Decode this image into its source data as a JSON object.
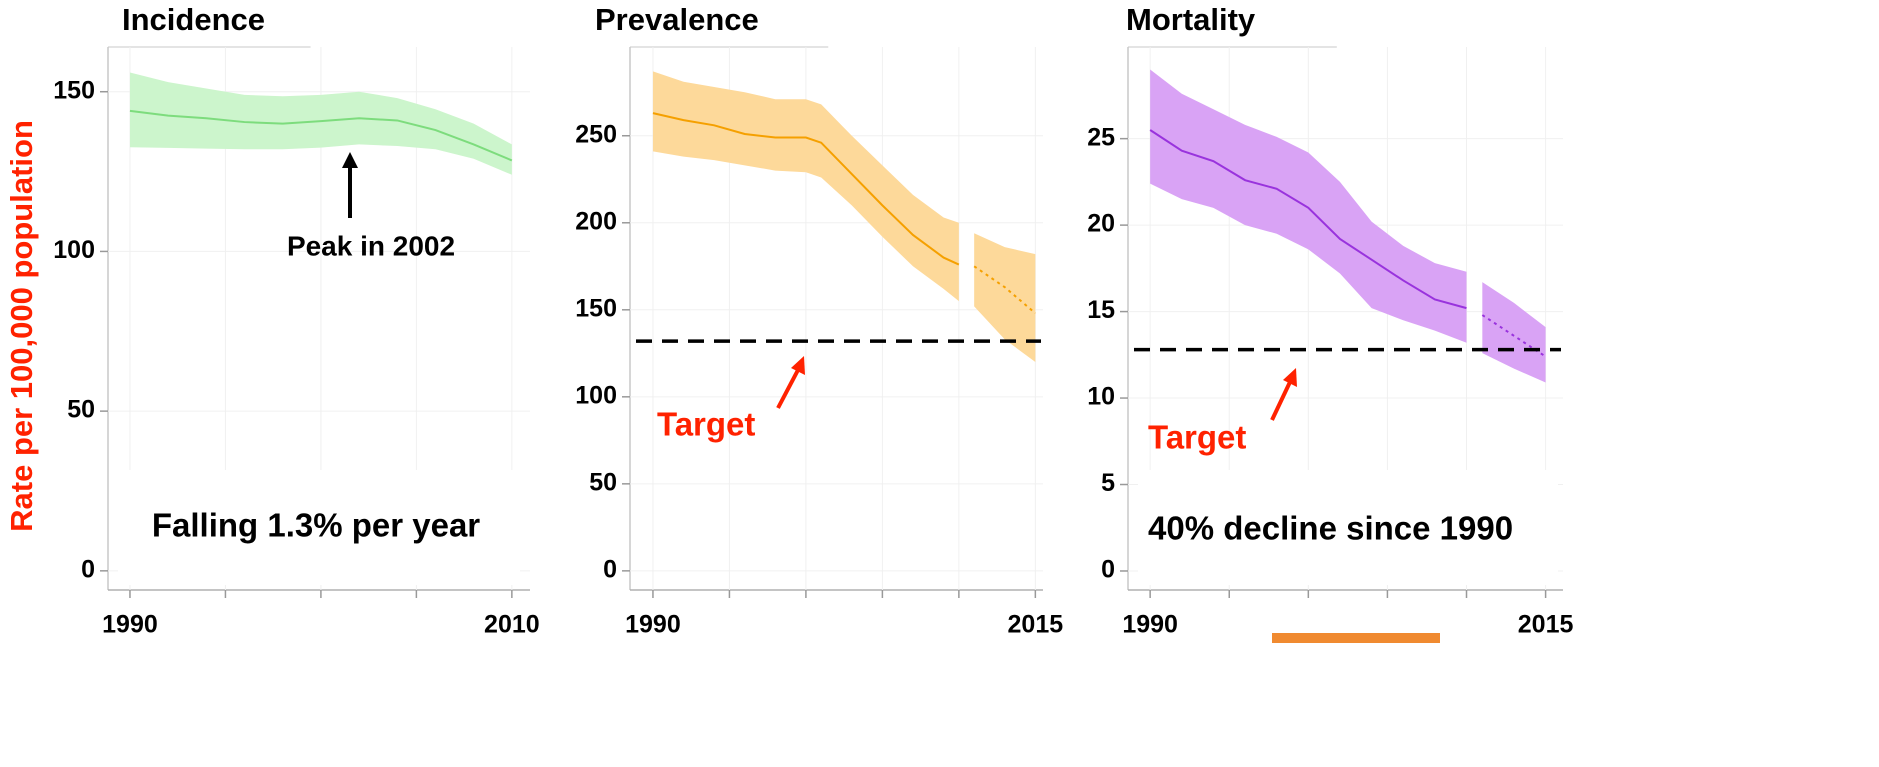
{
  "chart_data": [
    {
      "type": "line",
      "title": "Incidence",
      "ylabel": "Rate per 100,000 population",
      "xlim": [
        1988.85,
        2010.95
      ],
      "xticks": [
        1990,
        2010
      ],
      "xminor": [
        1995,
        2000,
        2005
      ],
      "ylim": [
        -6,
        164
      ],
      "yticks": [
        0,
        50,
        100,
        150
      ],
      "color": "#7ddc7d",
      "band_color": "#ccf5cc",
      "x": [
        1990,
        1992,
        1994,
        1996,
        1998,
        2000,
        2002,
        2004,
        2006,
        2008,
        2010
      ],
      "values": [
        144,
        142.5,
        141.7,
        140.5,
        140,
        140.8,
        141.7,
        141,
        138,
        133.5,
        128.5
      ],
      "upper": [
        156,
        153,
        151,
        149,
        148.6,
        149,
        150,
        148,
        144.5,
        140,
        133.5
      ],
      "lower": [
        132.6,
        132.4,
        132.2,
        132,
        132,
        132.5,
        133.5,
        133,
        132,
        129,
        124
      ],
      "annotations": [
        "Peak in 2002",
        "Falling 1.3% per year"
      ]
    },
    {
      "type": "line",
      "title": "Prevalence",
      "xlim": [
        1988.5,
        2015.5
      ],
      "xticks": [
        1990,
        2015
      ],
      "xminor": [
        1995,
        2000,
        2005,
        2010
      ],
      "ylim": [
        -11,
        301
      ],
      "yticks": [
        0,
        50,
        100,
        150,
        200,
        250
      ],
      "color": "#f5a000",
      "band_color": "#fdd99a",
      "x": [
        1990,
        1992,
        1994,
        1996,
        1998,
        2000,
        2001,
        2003,
        2005,
        2007,
        2009,
        2010
      ],
      "values": [
        263,
        259,
        256,
        251,
        249,
        249,
        246,
        228,
        210,
        193,
        180,
        176
      ],
      "upper": [
        287,
        281,
        278,
        275,
        271,
        271,
        268,
        250,
        233,
        216,
        203,
        200
      ],
      "lower": [
        241,
        238,
        236,
        233,
        230,
        229,
        226,
        210,
        192,
        175,
        162,
        155
      ],
      "proj_x": [
        2011,
        2013,
        2015
      ],
      "proj_values": [
        175,
        163,
        148
      ],
      "proj_upper": [
        194,
        186,
        182
      ],
      "proj_lower": [
        152,
        133,
        120
      ],
      "target": 132,
      "target_label": "Target",
      "annotations": []
    },
    {
      "type": "line",
      "title": "Mortality",
      "xlim": [
        1988.6,
        2016.1
      ],
      "xticks": [
        1990,
        2015
      ],
      "xminor": [
        1995,
        2000,
        2005,
        2010
      ],
      "ylim": [
        -1.1,
        30.3
      ],
      "yticks": [
        0,
        5,
        10,
        15,
        20,
        25
      ],
      "color": "#9933dd",
      "band_color": "#d9a3f5",
      "x": [
        1990,
        1992,
        1994,
        1996,
        1998,
        2000,
        2002,
        2004,
        2006,
        2008,
        2010
      ],
      "values": [
        25.5,
        24.3,
        23.7,
        22.6,
        22.1,
        21.0,
        19.2,
        18.0,
        16.8,
        15.7,
        15.2
      ],
      "upper": [
        29.0,
        27.6,
        26.7,
        25.8,
        25.1,
        24.2,
        22.5,
        20.2,
        18.8,
        17.8,
        17.3
      ],
      "lower": [
        22.4,
        21.5,
        21.0,
        20.0,
        19.5,
        18.6,
        17.2,
        15.2,
        14.5,
        13.9,
        13.2
      ],
      "proj_x": [
        2011,
        2013,
        2015
      ],
      "proj_values": [
        14.8,
        13.6,
        12.4
      ],
      "proj_upper": [
        16.7,
        15.5,
        14.1
      ],
      "proj_lower": [
        12.6,
        11.7,
        10.9
      ],
      "target": 12.8,
      "target_label": "Target",
      "annotations": [
        "40% decline since 1990"
      ]
    }
  ]
}
